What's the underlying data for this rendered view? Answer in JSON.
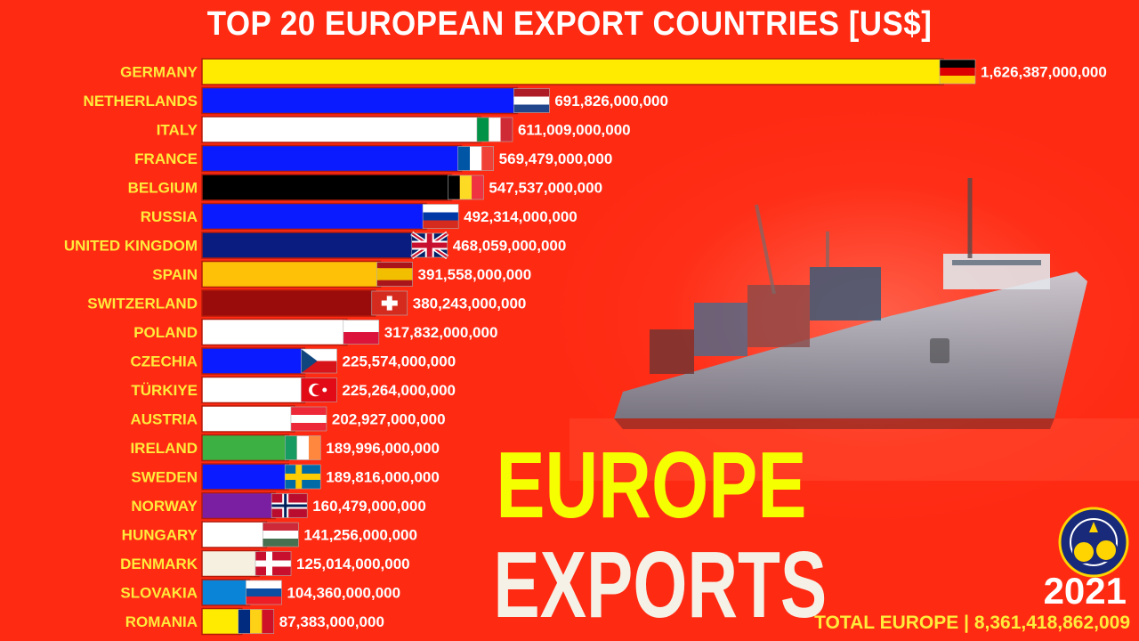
{
  "header": {
    "title": "TOP 20 EUROPEAN EXPORT COUNTRIES [US$]"
  },
  "overlay": {
    "line1": "EUROPE",
    "line2": "EXPORTS"
  },
  "footer": {
    "year": "2021",
    "total": "TOTAL EUROPE | 8,361,418,862,009"
  },
  "colors": {
    "background": "#ff2a12",
    "label": "#ffeb3b",
    "value": "#ffffff",
    "headline": "#f5ff00"
  },
  "chart_data": {
    "type": "bar",
    "orientation": "horizontal",
    "title": "TOP 20 EUROPEAN EXPORT COUNTRIES [US$]",
    "xlim": [
      0,
      1626387000000
    ],
    "grid": false,
    "categories": [
      "GERMANY",
      "NETHERLANDS",
      "ITALY",
      "FRANCE",
      "BELGIUM",
      "RUSSIA",
      "UNITED KINGDOM",
      "SPAIN",
      "SWITZERLAND",
      "POLAND",
      "CZECHIA",
      "TÜRKIYE",
      "AUSTRIA",
      "IRELAND",
      "SWEDEN",
      "NORWAY",
      "HUNGARY",
      "DENMARK",
      "SLOVAKIA",
      "ROMANIA"
    ],
    "values": [
      1626387000000,
      691826000000,
      611009000000,
      569479000000,
      547537000000,
      492314000000,
      468059000000,
      391558000000,
      380243000000,
      317832000000,
      225574000000,
      225264000000,
      202927000000,
      189996000000,
      189816000000,
      160479000000,
      141256000000,
      125014000000,
      104360000000,
      87383000000
    ],
    "value_labels": [
      "1,626,387,000,000",
      "691,826,000,000",
      "611,009,000,000",
      "569,479,000,000",
      "547,537,000,000",
      "492,314,000,000",
      "468,059,000,000",
      "391,558,000,000",
      "380,243,000,000",
      "317,832,000,000",
      "225,574,000,000",
      "225,264,000,000",
      "202,927,000,000",
      "189,996,000,000",
      "189,816,000,000",
      "160,479,000,000",
      "141,256,000,000",
      "125,014,000,000",
      "104,360,000,000",
      "87,383,000,000"
    ],
    "bar_colors": [
      "#ffeb00",
      "#0a1cff",
      "#ffffff",
      "#0a1cff",
      "#000000",
      "#0a1cff",
      "#0a1c80",
      "#ffc107",
      "#9a0b0b",
      "#ffffff",
      "#0a1cff",
      "#ffffff",
      "#ffffff",
      "#3cb043",
      "#0a1cff",
      "#7b1fa2",
      "#ffffff",
      "#f5f0e0",
      "#0a84d6",
      "#ffeb00"
    ],
    "flags": [
      {
        "type": "h",
        "colors": [
          "#000000",
          "#dd0000",
          "#ffce00"
        ]
      },
      {
        "type": "h",
        "colors": [
          "#ae1c28",
          "#ffffff",
          "#21468b"
        ]
      },
      {
        "type": "v",
        "colors": [
          "#009246",
          "#ffffff",
          "#ce2b37"
        ]
      },
      {
        "type": "v",
        "colors": [
          "#0055a4",
          "#ffffff",
          "#ef4135"
        ]
      },
      {
        "type": "v",
        "colors": [
          "#000000",
          "#fdda24",
          "#ef3340"
        ]
      },
      {
        "type": "h",
        "colors": [
          "#ffffff",
          "#0039a6",
          "#d52b1e"
        ]
      },
      {
        "type": "uk",
        "colors": [
          "#012169",
          "#ffffff",
          "#c8102e"
        ]
      },
      {
        "type": "h3",
        "colors": [
          "#aa151b",
          "#f1bf00",
          "#aa151b"
        ]
      },
      {
        "type": "cross",
        "colors": [
          "#d52b1e",
          "#ffffff"
        ]
      },
      {
        "type": "h",
        "colors": [
          "#ffffff",
          "#dc143c"
        ]
      },
      {
        "type": "cz",
        "colors": [
          "#ffffff",
          "#d7141a",
          "#11457e"
        ]
      },
      {
        "type": "tr",
        "colors": [
          "#e30a17",
          "#ffffff"
        ]
      },
      {
        "type": "h",
        "colors": [
          "#ed2939",
          "#ffffff",
          "#ed2939"
        ]
      },
      {
        "type": "v",
        "colors": [
          "#169b62",
          "#ffffff",
          "#ff883e"
        ]
      },
      {
        "type": "nordic",
        "colors": [
          "#006aa7",
          "#fecc00"
        ]
      },
      {
        "type": "nordic2",
        "colors": [
          "#ba0c2f",
          "#ffffff",
          "#00205b"
        ]
      },
      {
        "type": "h",
        "colors": [
          "#ce2939",
          "#ffffff",
          "#477050"
        ]
      },
      {
        "type": "nordic",
        "colors": [
          "#c8102e",
          "#ffffff"
        ]
      },
      {
        "type": "h",
        "colors": [
          "#ffffff",
          "#0b4ea2",
          "#ee1c25"
        ]
      },
      {
        "type": "v",
        "colors": [
          "#002b7f",
          "#fcd116",
          "#ce1126"
        ]
      }
    ]
  }
}
